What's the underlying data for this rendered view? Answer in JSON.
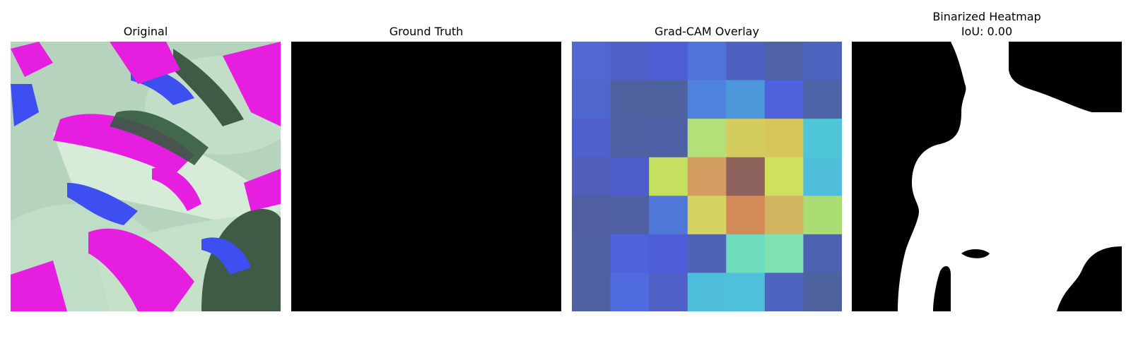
{
  "panels": [
    {
      "title": "Original"
    },
    {
      "title": "Ground Truth"
    },
    {
      "title": "Grad-CAM Overlay"
    },
    {
      "title": "Binarized Heatmap",
      "subtitle": "IoU: 0.00"
    }
  ],
  "gradcam_colors": [
    [
      "#5068cf",
      "#4f61c6",
      "#4f5fd3",
      "#4f73d9",
      "#4f61c0",
      "#4f62a8",
      "#4f64be"
    ],
    [
      "#4f67cc",
      "#4f619f",
      "#4f62a0",
      "#4f82dd",
      "#4d98db",
      "#4f61dc",
      "#4f63a7"
    ],
    [
      "#4f60cd",
      "#4f60a3",
      "#4f61a4",
      "#b3e078",
      "#d5cc5f",
      "#d6c75d",
      "#4ec6d8"
    ],
    [
      "#4f5fba",
      "#4f5ccc",
      "#c7df5f",
      "#d49d62",
      "#8e635d",
      "#d1df5e",
      "#4ebed9"
    ],
    [
      "#4f5fa1",
      "#4f61a2",
      "#4f78d8",
      "#d4d35f",
      "#d18a58",
      "#d3b460",
      "#aade74"
    ],
    [
      "#4f60a3",
      "#4f62dc",
      "#4f5ddb",
      "#4f62b7",
      "#6dddbd",
      "#7fe2b0",
      "#4f62b2"
    ],
    [
      "#4f61a2",
      "#4f6bdd",
      "#4f61c6",
      "#4fbddc",
      "#4fc0db",
      "#4f63c0",
      "#4f62a0"
    ]
  ]
}
